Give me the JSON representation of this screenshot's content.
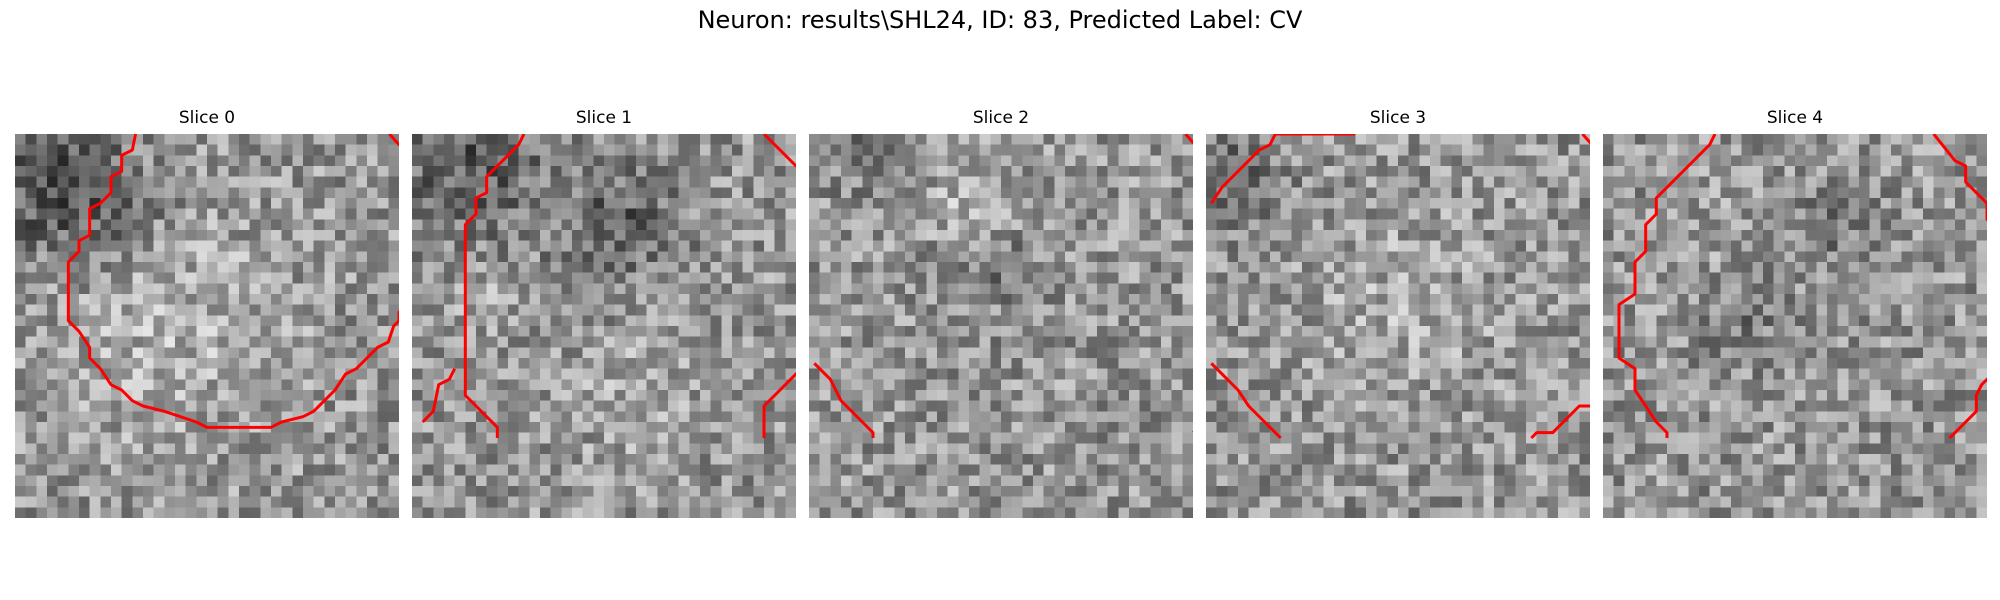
{
  "figure": {
    "title": "Neuron: results\\SHL24, ID: 83, Predicted Label: CV"
  },
  "style": {
    "contour_color": "#ff0000",
    "colormap": "gray"
  },
  "panels": [
    {
      "title": "Slice 0",
      "contours": [
        [
          [
            10.8,
            -0.5
          ],
          [
            10.5,
            1.0
          ],
          [
            9.5,
            1.5
          ],
          [
            9.5,
            3.0
          ],
          [
            8.5,
            3.5
          ],
          [
            8.5,
            5.0
          ],
          [
            7.5,
            6.0
          ],
          [
            6.5,
            6.5
          ],
          [
            6.5,
            9.0
          ],
          [
            5.5,
            9.5
          ],
          [
            5.5,
            10.5
          ],
          [
            4.5,
            11.5
          ],
          [
            4.5,
            17.0
          ],
          [
            5.5,
            18.0
          ],
          [
            6.5,
            19.5
          ],
          [
            6.5,
            20.5
          ],
          [
            7.5,
            21.5
          ],
          [
            8.5,
            23.0
          ],
          [
            9.5,
            23.5
          ],
          [
            10.5,
            24.5
          ],
          [
            11.5,
            25.0
          ],
          [
            13.5,
            25.5
          ],
          [
            16.5,
            26.5
          ],
          [
            17.5,
            27.0
          ],
          [
            23.5,
            27.0
          ],
          [
            24.5,
            26.5
          ],
          [
            26.5,
            26.0
          ],
          [
            27.5,
            25.5
          ],
          [
            28.5,
            24.5
          ],
          [
            29.5,
            23.5
          ],
          [
            30.5,
            22.0
          ],
          [
            31.5,
            21.5
          ],
          [
            32.5,
            20.5
          ],
          [
            33.5,
            19.5
          ],
          [
            34.5,
            19.0
          ],
          [
            35.0,
            17.5
          ],
          [
            35.5,
            17.0
          ],
          [
            35.5,
            16.2
          ],
          [
            36.0,
            16.0
          ]
        ],
        [
          [
            34.6,
            -0.5
          ],
          [
            35.5,
            0.5
          ],
          [
            36.0,
            0.6
          ]
        ]
      ]
    },
    {
      "title": "Slice 1",
      "contours": [
        [
          [
            10.0,
            -0.5
          ],
          [
            9.5,
            0.5
          ],
          [
            8.5,
            1.5
          ],
          [
            7.5,
            2.5
          ],
          [
            6.5,
            3.5
          ],
          [
            6.5,
            5.0
          ],
          [
            5.5,
            5.5
          ],
          [
            5.5,
            7.0
          ],
          [
            4.5,
            8.0
          ],
          [
            4.5,
            24.0
          ],
          [
            5.5,
            25.0
          ],
          [
            6.5,
            26.0
          ],
          [
            7.5,
            27.0
          ],
          [
            7.5,
            28.0
          ]
        ],
        [
          [
            0.5,
            26.5
          ],
          [
            1.5,
            25.5
          ],
          [
            2.0,
            23.0
          ],
          [
            3.0,
            22.5
          ],
          [
            3.5,
            21.5
          ]
        ],
        [
          [
            32.5,
            -0.5
          ],
          [
            35.5,
            2.5
          ],
          [
            36.0,
            2.8
          ]
        ],
        [
          [
            36.0,
            21.5
          ],
          [
            34.5,
            23.0
          ],
          [
            32.5,
            25.0
          ],
          [
            32.5,
            28.0
          ]
        ]
      ]
    },
    {
      "title": "Slice 2",
      "contours": [
        [
          [
            34.8,
            -0.5
          ],
          [
            35.5,
            0.3
          ],
          [
            36.0,
            0.6
          ]
        ],
        [
          [
            0.0,
            21.0
          ],
          [
            1.5,
            22.5
          ],
          [
            2.5,
            24.5
          ],
          [
            3.5,
            25.5
          ],
          [
            4.5,
            26.5
          ],
          [
            5.5,
            27.5
          ],
          [
            5.5,
            28.0
          ]
        ],
        [
          [
            36.0,
            27.1
          ],
          [
            35.5,
            27.5
          ]
        ]
      ]
    },
    {
      "title": "Slice 3",
      "contours": [
        [
          [
            0.0,
            6.0
          ],
          [
            1.0,
            4.5
          ],
          [
            2.5,
            3.0
          ],
          [
            3.5,
            2.0
          ],
          [
            4.5,
            1.0
          ],
          [
            5.5,
            0.5
          ],
          [
            6.0,
            -0.5
          ],
          [
            13.5,
            -0.5
          ]
        ],
        [
          [
            34.8,
            -0.5
          ],
          [
            35.5,
            0.3
          ],
          [
            36.0,
            0.6
          ]
        ],
        [
          [
            0.0,
            21.0
          ],
          [
            1.5,
            22.5
          ],
          [
            2.5,
            23.5
          ],
          [
            3.5,
            25.0
          ],
          [
            5.0,
            26.5
          ],
          [
            6.5,
            28.0
          ]
        ],
        [
          [
            36.0,
            25.0
          ],
          [
            34.5,
            25.0
          ],
          [
            32.0,
            27.5
          ],
          [
            30.5,
            27.5
          ],
          [
            30.0,
            28.0
          ]
        ]
      ]
    },
    {
      "title": "Slice 4",
      "contours": [
        [
          [
            10.0,
            -0.5
          ],
          [
            9.5,
            0.5
          ],
          [
            8.5,
            1.5
          ],
          [
            7.5,
            2.5
          ],
          [
            6.5,
            3.5
          ],
          [
            4.5,
            5.5
          ],
          [
            4.5,
            7.0
          ],
          [
            3.5,
            8.0
          ],
          [
            3.5,
            10.5
          ],
          [
            2.5,
            11.5
          ],
          [
            2.5,
            14.5
          ],
          [
            1.0,
            15.5
          ],
          [
            1.0,
            20.5
          ],
          [
            2.5,
            21.5
          ],
          [
            2.5,
            23.5
          ],
          [
            3.5,
            25.0
          ],
          [
            4.5,
            26.5
          ],
          [
            5.5,
            27.5
          ],
          [
            5.5,
            28.0
          ]
        ],
        [
          [
            30.5,
            -0.5
          ],
          [
            32.5,
            2.0
          ],
          [
            33.5,
            2.5
          ],
          [
            33.5,
            4.0
          ],
          [
            34.5,
            5.0
          ],
          [
            35.5,
            6.0
          ],
          [
            35.5,
            7.5
          ],
          [
            36.0,
            8.0
          ]
        ],
        [
          [
            36.0,
            22.0
          ],
          [
            35.0,
            23.0
          ],
          [
            34.5,
            24.0
          ],
          [
            34.5,
            25.5
          ],
          [
            33.5,
            26.5
          ],
          [
            32.5,
            27.5
          ],
          [
            32.0,
            28.0
          ]
        ]
      ]
    }
  ]
}
